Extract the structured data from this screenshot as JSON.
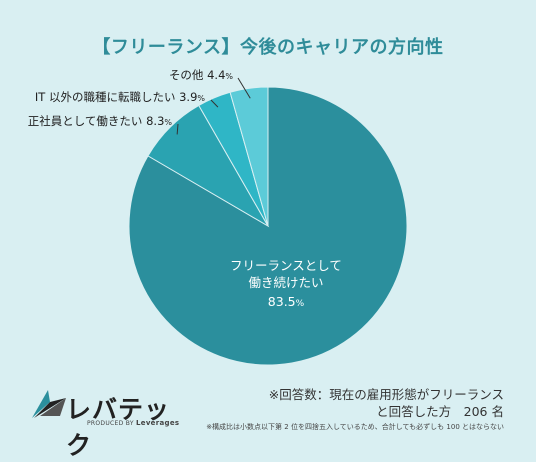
{
  "title": "【フリーランス】今後のキャリアの方向性",
  "chart_data": {
    "type": "pie",
    "title": "【フリーランス】今後のキャリアの方向性",
    "slices": [
      {
        "label": "フリーランスとして働き続けたい",
        "label_lines": [
          "フリーランスとして",
          "働き続けたい"
        ],
        "value": 83.5,
        "value_text": "83.5",
        "unit": "%",
        "color": "#2b8f9d"
      },
      {
        "label": "正社員として働きたい",
        "value": 8.3,
        "value_text": "8.3",
        "unit": "%",
        "color": "#2aa3b1"
      },
      {
        "label": "IT 以外の職種に転職したい",
        "value": 3.9,
        "value_text": "3.9",
        "unit": "%",
        "color": "#2fb6c6"
      },
      {
        "label": "その他",
        "value": 4.4,
        "value_text": "4.4",
        "unit": "%",
        "color": "#5ccbd8"
      }
    ]
  },
  "logo": {
    "name": "レバテック",
    "sub_prefix": "PRODUCED BY",
    "sub_brand": "Leverages"
  },
  "note": {
    "line1": "※回答数：現在の雇用形態がフリーランス",
    "line2": "と回答した方　206 名",
    "small": "※構成比は小数点以下第 2 位を四捨五入しているため、合計しても必ずしも 100 とはならない"
  }
}
